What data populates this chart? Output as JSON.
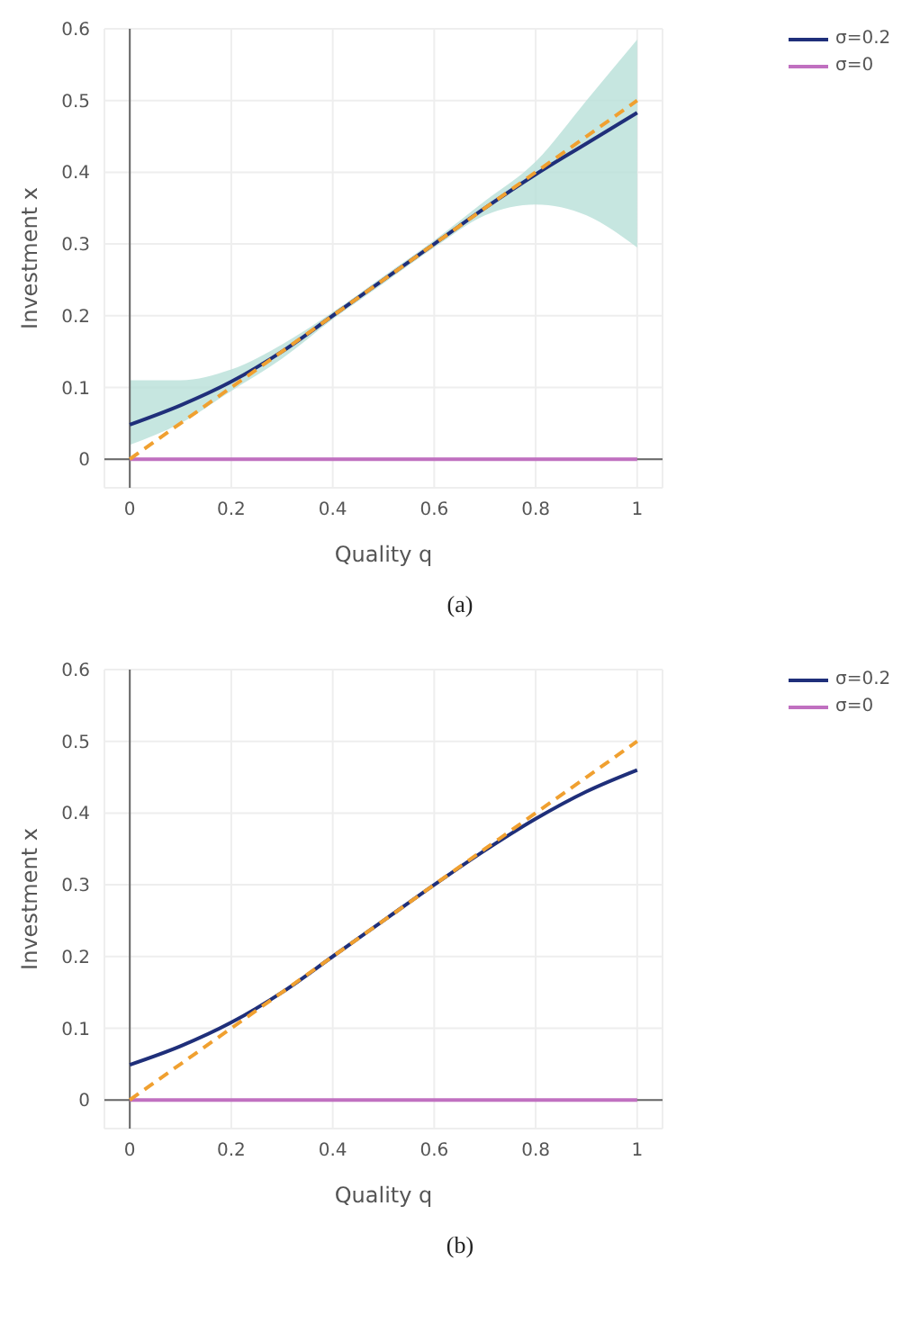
{
  "chart_data": [
    {
      "type": "line",
      "xlabel": "Quality q",
      "ylabel": "Investment x",
      "annotations": [
        "(a)"
      ],
      "xlim": [
        -0.05,
        1.05
      ],
      "ylim": [
        -0.04,
        0.6
      ],
      "xticks": [
        0,
        0.2,
        0.4,
        0.6,
        0.8,
        1
      ],
      "yticks": [
        0,
        0.1,
        0.2,
        0.3,
        0.4,
        0.5,
        0.6
      ],
      "grid": true,
      "legend": "top right",
      "marker": "none",
      "x": [
        0,
        0.1,
        0.2,
        0.3,
        0.4,
        0.5,
        0.6,
        0.7,
        0.8,
        0.9,
        1
      ],
      "series": [
        {
          "name": "σ=0.2",
          "color": "#1f2f7a",
          "values": [
            0.048,
            0.075,
            0.108,
            0.15,
            0.2,
            0.25,
            0.3,
            0.35,
            0.397,
            0.44,
            0.483
          ],
          "lower": [
            0.02,
            0.05,
            0.095,
            0.14,
            0.195,
            0.245,
            0.295,
            0.34,
            0.355,
            0.34,
            0.295
          ],
          "upper": [
            0.11,
            0.11,
            0.125,
            0.16,
            0.205,
            0.255,
            0.305,
            0.36,
            0.415,
            0.5,
            0.585
          ]
        },
        {
          "name": "σ=0",
          "color": "#c070c0",
          "values": [
            0,
            0,
            0,
            0,
            0,
            0,
            0,
            0,
            0,
            0,
            0
          ]
        },
        {
          "color": "#f0a030",
          "line_style": "dashed",
          "values": [
            0,
            0.05,
            0.1,
            0.15,
            0.2,
            0.25,
            0.3,
            0.35,
            0.4,
            0.45,
            0.5
          ]
        }
      ]
    },
    {
      "type": "line",
      "xlabel": "Quality q",
      "ylabel": "Investment x",
      "annotations": [
        "(b)"
      ],
      "xlim": [
        -0.05,
        1.05
      ],
      "ylim": [
        -0.04,
        0.6
      ],
      "xticks": [
        0,
        0.2,
        0.4,
        0.6,
        0.8,
        1
      ],
      "yticks": [
        0,
        0.1,
        0.2,
        0.3,
        0.4,
        0.5,
        0.6
      ],
      "grid": true,
      "legend": "top right",
      "marker": "none",
      "x": [
        0,
        0.1,
        0.2,
        0.3,
        0.4,
        0.5,
        0.6,
        0.7,
        0.8,
        0.9,
        1
      ],
      "series": [
        {
          "name": "σ=0.2",
          "color": "#1f2f7a",
          "values": [
            0.049,
            0.075,
            0.108,
            0.15,
            0.2,
            0.25,
            0.3,
            0.348,
            0.392,
            0.43,
            0.46
          ]
        },
        {
          "name": "σ=0",
          "color": "#c070c0",
          "values": [
            0,
            0,
            0,
            0,
            0,
            0,
            0,
            0,
            0,
            0,
            0
          ]
        },
        {
          "color": "#f0a030",
          "line_style": "dashed",
          "values": [
            0,
            0.05,
            0.1,
            0.15,
            0.2,
            0.25,
            0.3,
            0.35,
            0.4,
            0.45,
            0.5
          ]
        }
      ]
    }
  ]
}
